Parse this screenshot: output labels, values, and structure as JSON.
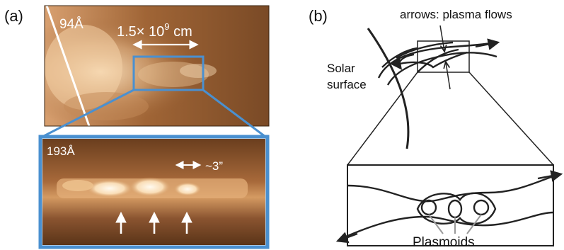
{
  "panel_a": {
    "label": "(a)",
    "top_image": {
      "wavelength": "94Å",
      "scale_text": "1.5× 10",
      "scale_exponent": "9",
      "scale_unit": " cm"
    },
    "bottom_image": {
      "wavelength": "193Å",
      "scale_text": "~3”"
    }
  },
  "panel_b": {
    "label": "(b)",
    "arrows_note": "arrows: plasma flows",
    "surface_label_line1": "Solar",
    "surface_label_line2": "surface",
    "plasmoids_label": "Plasmoids"
  },
  "colors": {
    "inset_frame": "#4a90d0",
    "image_dark": "#5a3418",
    "image_mid": "#a0683a",
    "image_bright": "#fff4dc"
  }
}
